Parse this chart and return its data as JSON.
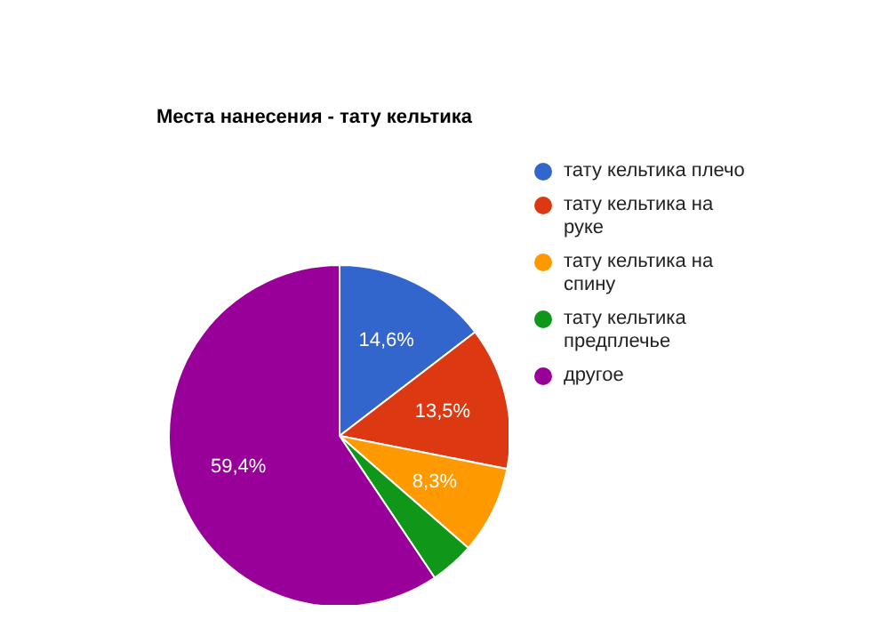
{
  "chart_data": {
    "type": "pie",
    "title": "Места нанесения - тату кельтика",
    "categories": [
      "тату кельтика плечо",
      "тату кельтика на руке",
      "тату кельтика на спину",
      "тату кельтика предплечье",
      "другое"
    ],
    "values": [
      14.6,
      13.5,
      8.3,
      4.2,
      59.4
    ],
    "value_labels": [
      "14,6%",
      "13,5%",
      "8,3%",
      null,
      "59,4%"
    ],
    "colors": [
      "#3366cc",
      "#dc3912",
      "#ff9900",
      "#109618",
      "#990099"
    ],
    "legend": "right"
  }
}
